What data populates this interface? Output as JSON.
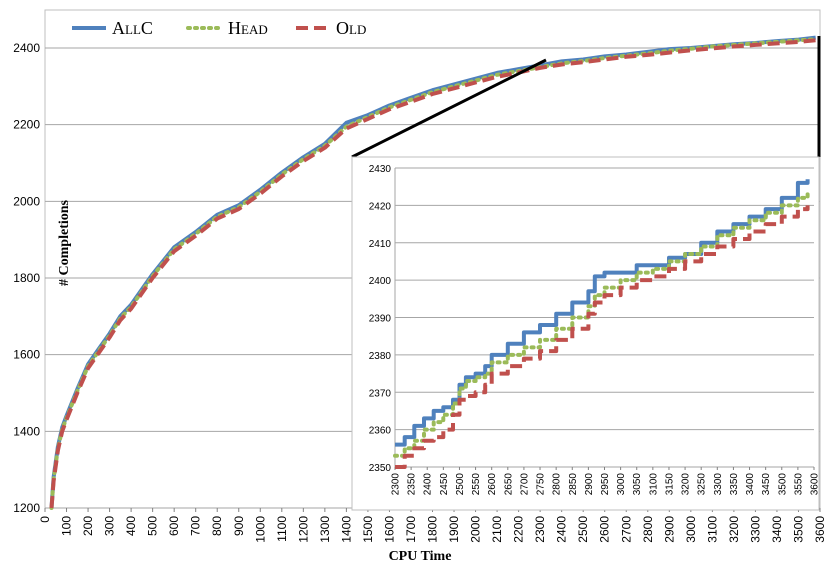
{
  "chart_data": [
    {
      "type": "line",
      "xlabel": "CPU Time",
      "ylabel": "# Completions",
      "xlim": [
        0,
        3600
      ],
      "ylim": [
        1200,
        2500
      ],
      "x_ticks": [
        0,
        100,
        200,
        300,
        400,
        500,
        600,
        700,
        800,
        900,
        1000,
        1100,
        1200,
        1300,
        1400,
        1500,
        1600,
        1700,
        1800,
        1900,
        2000,
        2100,
        2200,
        2300,
        2400,
        2500,
        2600,
        2700,
        2800,
        2900,
        3000,
        3100,
        3200,
        3300,
        3400,
        3500,
        3600
      ],
      "y_ticks": [
        1200,
        1400,
        1600,
        1800,
        2000,
        2200,
        2400
      ],
      "grid": "horizontal",
      "legend": "top-left",
      "series": [
        {
          "name": "AllC",
          "color": "#4f81bd",
          "style": "solid",
          "x": [
            30,
            40,
            60,
            80,
            100,
            150,
            200,
            250,
            300,
            350,
            400,
            500,
            600,
            700,
            800,
            900,
            1000,
            1100,
            1200,
            1300,
            1400,
            1500,
            1600,
            1700,
            1800,
            1900,
            2000,
            2100,
            2200,
            2300,
            2400,
            2500,
            2600,
            2700,
            2800,
            2900,
            3000,
            3100,
            3200,
            3300,
            3400,
            3500,
            3580
          ],
          "y": [
            1200,
            1280,
            1360,
            1410,
            1440,
            1510,
            1575,
            1615,
            1655,
            1700,
            1730,
            1810,
            1880,
            1920,
            1965,
            1990,
            2030,
            2075,
            2115,
            2150,
            2205,
            2225,
            2250,
            2270,
            2290,
            2305,
            2320,
            2335,
            2345,
            2355,
            2365,
            2370,
            2378,
            2383,
            2390,
            2397,
            2400,
            2405,
            2410,
            2413,
            2418,
            2422,
            2427
          ]
        },
        {
          "name": "Head",
          "color": "#9bbb59",
          "style": "dotted",
          "x": [
            30,
            40,
            60,
            80,
            100,
            150,
            200,
            250,
            300,
            350,
            400,
            500,
            600,
            700,
            800,
            900,
            1000,
            1100,
            1200,
            1300,
            1400,
            1500,
            1600,
            1700,
            1800,
            1900,
            2000,
            2100,
            2200,
            2300,
            2400,
            2500,
            2600,
            2700,
            2800,
            2900,
            3000,
            3100,
            3200,
            3300,
            3400,
            3500,
            3580
          ],
          "y": [
            1200,
            1275,
            1355,
            1405,
            1435,
            1505,
            1570,
            1610,
            1650,
            1695,
            1725,
            1805,
            1875,
            1915,
            1960,
            1985,
            2025,
            2070,
            2110,
            2145,
            2195,
            2220,
            2245,
            2265,
            2285,
            2300,
            2315,
            2330,
            2340,
            2350,
            2360,
            2366,
            2374,
            2380,
            2386,
            2393,
            2398,
            2404,
            2408,
            2412,
            2416,
            2420,
            2423
          ]
        },
        {
          "name": "Old",
          "color": "#c0504d",
          "style": "dashed",
          "x": [
            30,
            40,
            60,
            80,
            100,
            150,
            200,
            250,
            300,
            350,
            400,
            500,
            600,
            700,
            800,
            900,
            1000,
            1100,
            1200,
            1300,
            1400,
            1500,
            1600,
            1700,
            1800,
            1900,
            2000,
            2100,
            2200,
            2300,
            2400,
            2500,
            2600,
            2700,
            2800,
            2900,
            3000,
            3100,
            3200,
            3300,
            3400,
            3500,
            3580
          ],
          "y": [
            1200,
            1270,
            1350,
            1400,
            1430,
            1500,
            1565,
            1605,
            1645,
            1690,
            1720,
            1800,
            1870,
            1910,
            1955,
            1980,
            2020,
            2065,
            2105,
            2140,
            2190,
            2215,
            2240,
            2260,
            2280,
            2295,
            2310,
            2325,
            2336,
            2348,
            2357,
            2363,
            2370,
            2377,
            2382,
            2388,
            2394,
            2399,
            2404,
            2408,
            2412,
            2416,
            2420
          ]
        }
      ]
    },
    {
      "type": "line",
      "xlim": [
        2300,
        3600
      ],
      "ylim": [
        2350,
        2430
      ],
      "x_ticks": [
        2300,
        2350,
        2400,
        2450,
        2500,
        2550,
        2600,
        2650,
        2700,
        2750,
        2800,
        2850,
        2900,
        2950,
        3000,
        3050,
        3100,
        3150,
        3200,
        3250,
        3300,
        3350,
        3400,
        3450,
        3500,
        3550,
        3600
      ],
      "y_ticks": [
        2350,
        2360,
        2370,
        2380,
        2390,
        2400,
        2410,
        2420,
        2430
      ],
      "grid": "horizontal",
      "series": [
        {
          "name": "AllC",
          "color": "#4f81bd",
          "style": "solid",
          "x": [
            2300,
            2330,
            2360,
            2390,
            2420,
            2450,
            2480,
            2500,
            2520,
            2550,
            2580,
            2600,
            2650,
            2700,
            2750,
            2800,
            2850,
            2900,
            2920,
            2950,
            3000,
            3050,
            3100,
            3150,
            3200,
            3250,
            3300,
            3350,
            3400,
            3450,
            3500,
            3550,
            3580
          ],
          "y": [
            2356,
            2358,
            2361,
            2363,
            2365,
            2366,
            2368,
            2372,
            2374,
            2375,
            2377,
            2380,
            2383,
            2386,
            2388,
            2391,
            2394,
            2397,
            2401,
            2402,
            2402,
            2404,
            2404,
            2406,
            2407,
            2410,
            2413,
            2415,
            2417,
            2419,
            2422,
            2426,
            2427
          ]
        },
        {
          "name": "Head",
          "color": "#9bbb59",
          "style": "dotted",
          "x": [
            2300,
            2330,
            2360,
            2390,
            2420,
            2450,
            2480,
            2500,
            2520,
            2550,
            2580,
            2600,
            2650,
            2700,
            2750,
            2800,
            2850,
            2900,
            2920,
            2950,
            3000,
            3050,
            3100,
            3150,
            3200,
            3250,
            3300,
            3350,
            3400,
            3450,
            3500,
            3550,
            3580
          ],
          "y": [
            2353,
            2355,
            2357,
            2360,
            2362,
            2364,
            2367,
            2371,
            2373,
            2374,
            2375,
            2378,
            2380,
            2382,
            2384,
            2387,
            2390,
            2393,
            2396,
            2398,
            2400,
            2402,
            2403,
            2405,
            2407,
            2409,
            2412,
            2414,
            2416,
            2418,
            2420,
            2422,
            2423
          ]
        },
        {
          "name": "Old",
          "color": "#c0504d",
          "style": "dashed",
          "x": [
            2300,
            2330,
            2360,
            2390,
            2420,
            2450,
            2480,
            2500,
            2520,
            2550,
            2580,
            2600,
            2650,
            2700,
            2750,
            2800,
            2850,
            2900,
            2920,
            2950,
            3000,
            3050,
            3100,
            3150,
            3200,
            3250,
            3300,
            3350,
            3400,
            3450,
            3500,
            3550,
            3580
          ],
          "y": [
            2350,
            2353,
            2355,
            2357,
            2358,
            2360,
            2364,
            2368,
            2369,
            2370,
            2372,
            2375,
            2377,
            2379,
            2381,
            2384,
            2387,
            2391,
            2394,
            2396,
            2398,
            2400,
            2401,
            2403,
            2405,
            2407,
            2409,
            2411,
            2413,
            2415,
            2417,
            2419,
            2420
          ]
        }
      ]
    }
  ]
}
